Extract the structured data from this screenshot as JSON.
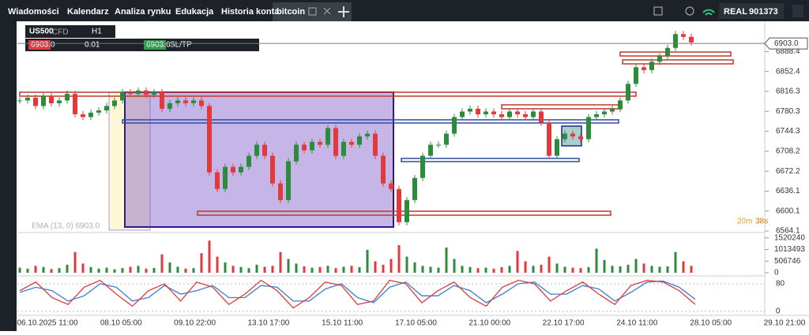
{
  "nav": {
    "tabs": [
      "Wiadomości",
      "Kalendarz",
      "Analiza rynku",
      "Edukacja",
      "Historia konta",
      "bitcoin"
    ],
    "account_type": "REAL",
    "account_id": "901373"
  },
  "trade_panel": {
    "symbol": "US500",
    "symbol_type": "CFD",
    "timeframe": "H1",
    "sell_price": "6903.0",
    "volume": "0.01",
    "buy_price": "6903.6",
    "sltp": "SL/TP"
  },
  "chart_data": {
    "type": "candlestick",
    "indicator_label": "EMA (13, 0) 6903.0",
    "countdown": [
      "20m",
      "38s"
    ],
    "current_price": {
      "value": 6903,
      "label": "6903.0"
    },
    "ylim": [
      6561.3,
      6941.7
    ],
    "yticks": [
      6888.4,
      6852.4,
      6816.3,
      6780.3,
      6744.3,
      6708.2,
      6672.2,
      6636.1,
      6600.1,
      6564.1
    ],
    "x_labels": [
      "06.10.2025 11:00",
      "08.10 05:00",
      "09.10 22:00",
      "13.10 17:00",
      "15.10 11:00",
      "17.10 05:00",
      "21.10 00:00",
      "22.10 17:00",
      "24.10 11:00",
      "28.10 05:00",
      "29.10 21:00"
    ],
    "closes": [
      6800,
      6805,
      6790,
      6808,
      6795,
      6800,
      6812,
      6775,
      6770,
      6778,
      6782,
      6790,
      6800,
      6815,
      6812,
      6818,
      6810,
      6815,
      6785,
      6795,
      6800,
      6795,
      6800,
      6790,
      6670,
      6640,
      6680,
      6670,
      6680,
      6700,
      6720,
      6700,
      6650,
      6620,
      6690,
      6720,
      6710,
      6725,
      6720,
      6750,
      6700,
      6725,
      6720,
      6735,
      6740,
      6700,
      6650,
      6640,
      6580,
      6620,
      6660,
      6700,
      6720,
      6720,
      6740,
      6770,
      6780,
      6785,
      6775,
      6780,
      6775,
      6770,
      6780,
      6775,
      6770,
      6780,
      6760,
      6700,
      6730,
      6740,
      6735,
      6730,
      6770,
      6775,
      6780,
      6785,
      6800,
      6830,
      6860,
      6855,
      6870,
      6880,
      6895,
      6920,
      6915,
      6905
    ],
    "up_color": "#2e8b3d",
    "down_color": "#e0393e",
    "volume": {
      "ylim": [
        0,
        1650000
      ],
      "yticks": [
        1520240,
        1013493,
        506746,
        0
      ],
      "values": [
        220000,
        180000,
        300000,
        250000,
        160000,
        200000,
        350000,
        900000,
        400000,
        250000,
        180000,
        220000,
        150000,
        200000,
        260000,
        300000,
        180000,
        210000,
        800000,
        450000,
        260000,
        180000,
        200000,
        850000,
        1400000,
        700000,
        450000,
        300000,
        250000,
        200000,
        350000,
        260000,
        300000,
        900000,
        600000,
        400000,
        280000,
        220000,
        250000,
        300000,
        200000,
        260000,
        300000,
        240000,
        1000000,
        500000,
        350000,
        600000,
        1200000,
        700000,
        450000,
        300000,
        260000,
        220000,
        1100000,
        600000,
        300000,
        250000,
        200000,
        220000,
        180000,
        240000,
        300000,
        950000,
        500000,
        300000,
        350000,
        700000,
        400000,
        260000,
        220000,
        200000,
        240000,
        1050000,
        550000,
        300000,
        280000,
        350000,
        600000,
        400000,
        300000,
        260000,
        280000,
        900000,
        500000,
        300000
      ]
    },
    "oscillator": {
      "ylim": [
        -11.4,
        98.3
      ],
      "yticks": [
        80,
        0
      ],
      "main": [
        60,
        85,
        40,
        20,
        70,
        90,
        50,
        15,
        60,
        80,
        30,
        85,
        70,
        20,
        50,
        90,
        60,
        10,
        40,
        85,
        75,
        20,
        30,
        90,
        80,
        25,
        60,
        85,
        40,
        15,
        70,
        90,
        80,
        30,
        60,
        85,
        50,
        20,
        75,
        90,
        85,
        60,
        20
      ],
      "signal": [
        55,
        70,
        60,
        30,
        45,
        80,
        70,
        30,
        40,
        75,
        50,
        60,
        75,
        40,
        40,
        75,
        70,
        30,
        30,
        65,
        80,
        40,
        25,
        70,
        85,
        45,
        45,
        75,
        60,
        25,
        50,
        80,
        85,
        50,
        50,
        75,
        65,
        30,
        55,
        85,
        88,
        70,
        35
      ],
      "main_color": "#e0393e",
      "signal_color": "#3a7fd5"
    }
  }
}
